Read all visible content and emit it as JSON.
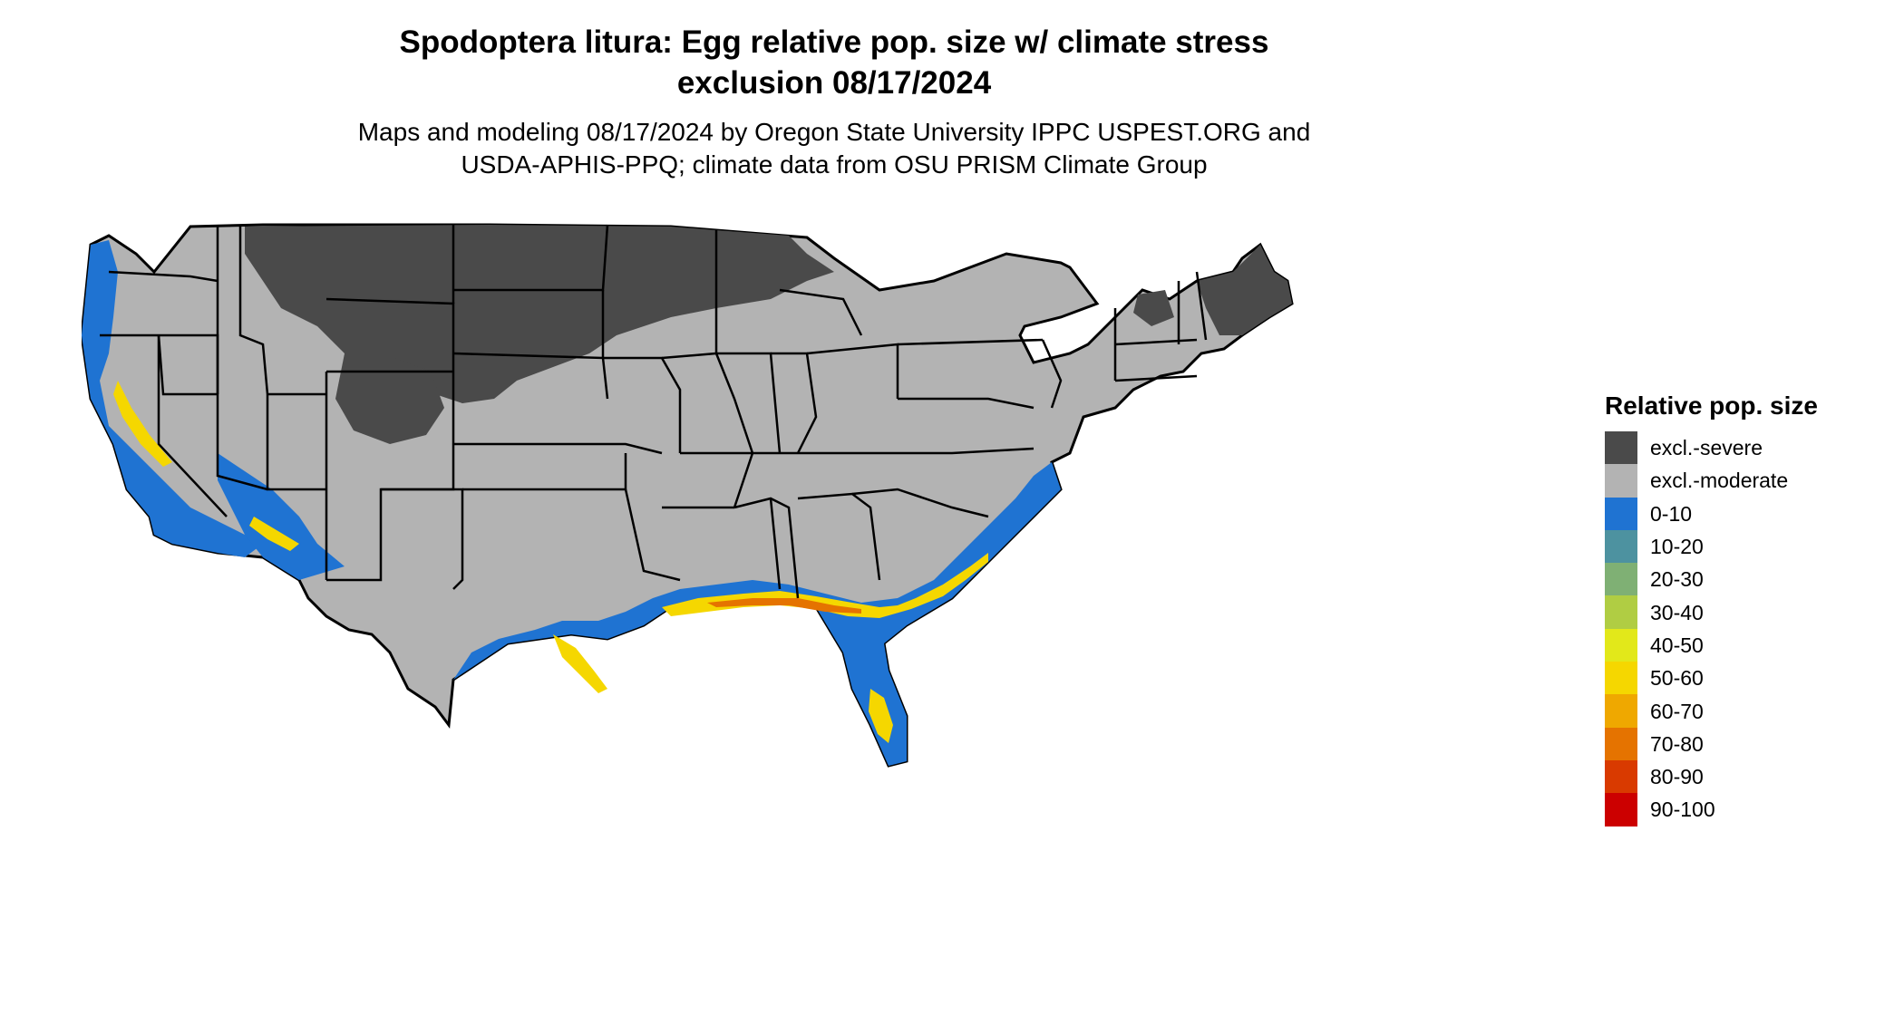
{
  "title": {
    "line1": "Spodoptera litura: Egg relative pop. size w/ climate stress",
    "line2": "exclusion 08/17/2024"
  },
  "subtitle": {
    "line1": "Maps and modeling 08/17/2024 by Oregon State University IPPC USPEST.ORG and",
    "line2": "USDA-APHIS-PPQ; climate data from OSU PRISM Climate Group"
  },
  "legend": {
    "title": "Relative pop. size",
    "items": [
      {
        "label": "excl.-severe",
        "color": "#4a4a4a"
      },
      {
        "label": "excl.-moderate",
        "color": "#b3b3b3"
      },
      {
        "label": "0-10",
        "color": "#1f73d2"
      },
      {
        "label": "10-20",
        "color": "#4d92a0"
      },
      {
        "label": "20-30",
        "color": "#7fb074"
      },
      {
        "label": "30-40",
        "color": "#b0cd43"
      },
      {
        "label": "40-50",
        "color": "#e2e81a"
      },
      {
        "label": "50-60",
        "color": "#f5d700"
      },
      {
        "label": "60-70",
        "color": "#efa800"
      },
      {
        "label": "70-80",
        "color": "#e57300"
      },
      {
        "label": "80-90",
        "color": "#d93a00"
      },
      {
        "label": "90-100",
        "color": "#cc0000"
      }
    ]
  },
  "map": {
    "colors": {
      "severe": "#4a4a4a",
      "moderate": "#b3b3b3",
      "low": "#1f73d2",
      "mid": "#f5d700",
      "high": "#e57300",
      "border": "#000000"
    }
  }
}
